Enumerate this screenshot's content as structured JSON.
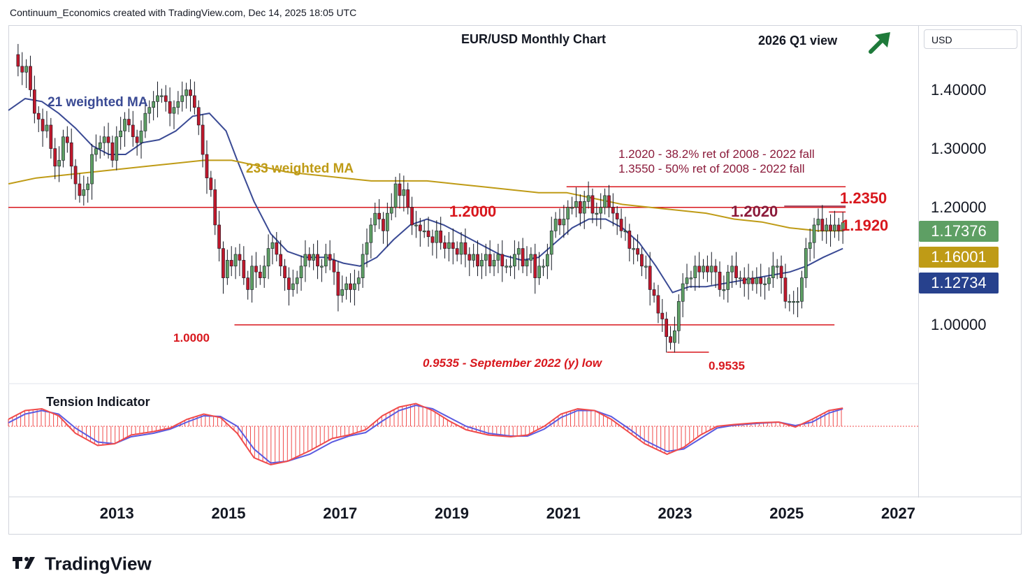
{
  "header": {
    "attribution": "Continuum_Economics created with TradingView.com, Dec 14, 2025 18:05 UTC"
  },
  "branding": {
    "logo_text": "TradingView",
    "logo_icon": "tradingview-logo-icon"
  },
  "chart_data": {
    "type": "candlestick",
    "title": "EUR/USD Monthly Chart",
    "view_label": "2026 Q1 view",
    "view_direction": "up",
    "view_arrow_icon": "arrow-up-right-icon",
    "currency": "USD",
    "ylim": [
      0.9,
      1.51
    ],
    "y_ticks": [
      "1.40000",
      "1.30000",
      "1.20000",
      "1.00000"
    ],
    "x_ticks": [
      "2013",
      "2015",
      "2017",
      "2019",
      "2021",
      "2023",
      "2025",
      "2027"
    ],
    "x_range": [
      2011.0,
      2027.3
    ],
    "last_prices": [
      {
        "value": "1.17376",
        "color": "#5e9f64"
      },
      {
        "value": "1.16001",
        "color": "#bf9b16"
      },
      {
        "value": "1.12734",
        "color": "#27418d"
      }
    ],
    "colors": {
      "up": "#5e9f64",
      "down": "#c0182c",
      "ma21": "#3a4a94",
      "ma233": "#bf9b16",
      "level": "#d8171d",
      "annotation": "#8b1a3a",
      "view": "#1e7a3a",
      "osc_fast": "#f04a4a",
      "osc_slow": "#5b5be0"
    },
    "moving_averages": [
      {
        "name": "21 weighted MA",
        "color": "#3a4a94",
        "points": [
          [
            2011.0,
            1.365
          ],
          [
            2011.3,
            1.385
          ],
          [
            2011.6,
            1.38
          ],
          [
            2011.9,
            1.36
          ],
          [
            2012.2,
            1.335
          ],
          [
            2012.5,
            1.305
          ],
          [
            2012.8,
            1.29
          ],
          [
            2013.1,
            1.29
          ],
          [
            2013.4,
            1.31
          ],
          [
            2013.7,
            1.315
          ],
          [
            2014.0,
            1.33
          ],
          [
            2014.3,
            1.355
          ],
          [
            2014.6,
            1.36
          ],
          [
            2014.9,
            1.33
          ],
          [
            2015.1,
            1.28
          ],
          [
            2015.4,
            1.21
          ],
          [
            2015.7,
            1.155
          ],
          [
            2016.0,
            1.125
          ],
          [
            2016.3,
            1.115
          ],
          [
            2016.7,
            1.115
          ],
          [
            2017.0,
            1.105
          ],
          [
            2017.3,
            1.1
          ],
          [
            2017.6,
            1.115
          ],
          [
            2017.9,
            1.145
          ],
          [
            2018.2,
            1.17
          ],
          [
            2018.5,
            1.18
          ],
          [
            2018.8,
            1.17
          ],
          [
            2019.1,
            1.155
          ],
          [
            2019.4,
            1.14
          ],
          [
            2019.8,
            1.12
          ],
          [
            2020.2,
            1.11
          ],
          [
            2020.5,
            1.115
          ],
          [
            2020.8,
            1.14
          ],
          [
            2021.1,
            1.165
          ],
          [
            2021.4,
            1.18
          ],
          [
            2021.7,
            1.18
          ],
          [
            2022.0,
            1.165
          ],
          [
            2022.3,
            1.14
          ],
          [
            2022.6,
            1.1
          ],
          [
            2022.9,
            1.055
          ],
          [
            2023.2,
            1.065
          ],
          [
            2023.5,
            1.065
          ],
          [
            2023.8,
            1.07
          ],
          [
            2024.1,
            1.075
          ],
          [
            2024.4,
            1.08
          ],
          [
            2024.7,
            1.085
          ],
          [
            2025.0,
            1.09
          ],
          [
            2025.3,
            1.1
          ],
          [
            2025.6,
            1.115
          ],
          [
            2025.95,
            1.13
          ]
        ]
      },
      {
        "name": "233 weighted MA",
        "color": "#bf9b16",
        "points": [
          [
            2011.0,
            1.24
          ],
          [
            2011.5,
            1.25
          ],
          [
            2012.0,
            1.255
          ],
          [
            2012.5,
            1.26
          ],
          [
            2013.0,
            1.265
          ],
          [
            2013.5,
            1.27
          ],
          [
            2014.0,
            1.275
          ],
          [
            2014.5,
            1.28
          ],
          [
            2015.0,
            1.28
          ],
          [
            2015.5,
            1.27
          ],
          [
            2016.0,
            1.26
          ],
          [
            2016.5,
            1.255
          ],
          [
            2017.0,
            1.25
          ],
          [
            2017.5,
            1.245
          ],
          [
            2018.0,
            1.245
          ],
          [
            2018.5,
            1.245
          ],
          [
            2019.0,
            1.24
          ],
          [
            2019.5,
            1.235
          ],
          [
            2020.0,
            1.23
          ],
          [
            2020.5,
            1.225
          ],
          [
            2021.0,
            1.225
          ],
          [
            2021.5,
            1.215
          ],
          [
            2022.0,
            1.205
          ],
          [
            2022.5,
            1.2
          ],
          [
            2023.0,
            1.195
          ],
          [
            2023.5,
            1.19
          ],
          [
            2024.0,
            1.18
          ],
          [
            2024.5,
            1.175
          ],
          [
            2025.0,
            1.165
          ],
          [
            2025.5,
            1.16
          ],
          [
            2025.95,
            1.16
          ]
        ]
      }
    ],
    "candles_close": [
      1.46,
      1.44,
      1.43,
      1.44,
      1.4,
      1.36,
      1.35,
      1.33,
      1.34,
      1.3,
      1.27,
      1.28,
      1.32,
      1.31,
      1.27,
      1.24,
      1.22,
      1.23,
      1.24,
      1.29,
      1.3,
      1.31,
      1.32,
      1.31,
      1.28,
      1.32,
      1.33,
      1.35,
      1.34,
      1.32,
      1.31,
      1.33,
      1.36,
      1.37,
      1.38,
      1.39,
      1.39,
      1.38,
      1.36,
      1.37,
      1.38,
      1.39,
      1.4,
      1.39,
      1.37,
      1.34,
      1.29,
      1.25,
      1.23,
      1.17,
      1.13,
      1.08,
      1.11,
      1.1,
      1.12,
      1.11,
      1.08,
      1.06,
      1.1,
      1.09,
      1.08,
      1.1,
      1.13,
      1.14,
      1.12,
      1.1,
      1.08,
      1.06,
      1.07,
      1.08,
      1.1,
      1.12,
      1.11,
      1.12,
      1.1,
      1.1,
      1.12,
      1.11,
      1.09,
      1.05,
      1.06,
      1.07,
      1.06,
      1.07,
      1.08,
      1.12,
      1.14,
      1.17,
      1.19,
      1.18,
      1.16,
      1.19,
      1.2,
      1.24,
      1.22,
      1.23,
      1.2,
      1.17,
      1.17,
      1.16,
      1.16,
      1.15,
      1.14,
      1.16,
      1.14,
      1.13,
      1.14,
      1.13,
      1.12,
      1.14,
      1.12,
      1.11,
      1.12,
      1.1,
      1.11,
      1.12,
      1.1,
      1.11,
      1.12,
      1.1,
      1.1,
      1.1,
      1.12,
      1.13,
      1.1,
      1.11,
      1.12,
      1.08,
      1.1,
      1.1,
      1.12,
      1.16,
      1.18,
      1.17,
      1.18,
      1.2,
      1.2,
      1.21,
      1.19,
      1.21,
      1.22,
      1.19,
      1.19,
      1.2,
      1.22,
      1.2,
      1.19,
      1.18,
      1.16,
      1.16,
      1.13,
      1.13,
      1.12,
      1.1,
      1.1,
      1.06,
      1.05,
      1.02,
      1.01,
      0.98,
      0.97,
      0.99,
      1.04,
      1.07,
      1.08,
      1.08,
      1.1,
      1.09,
      1.1,
      1.09,
      1.1,
      1.09,
      1.06,
      1.06,
      1.09,
      1.1,
      1.08,
      1.08,
      1.07,
      1.08,
      1.07,
      1.08,
      1.07,
      1.07,
      1.08,
      1.1,
      1.1,
      1.08,
      1.04,
      1.04,
      1.04,
      1.04,
      1.08,
      1.13,
      1.14,
      1.17,
      1.18,
      1.16,
      1.17,
      1.16,
      1.17,
      1.16,
      1.174
    ],
    "candle_range": [
      2011.1,
      2025.95
    ],
    "horizontal_levels": [
      {
        "value": 1.2,
        "label": "1.2000",
        "color": "#d8171d",
        "from": 2011.0,
        "to": 2026.0
      },
      {
        "value": 1.235,
        "label": "1.2350",
        "color": "#d8171d",
        "from": 2021.0,
        "to": 2026.0
      },
      {
        "value": 1.202,
        "label": "1.2020",
        "color": "#8b1a3a",
        "from": 2024.9,
        "to": 2026.0
      },
      {
        "value": 1.192,
        "label": "1.1920",
        "color": "#d8171d",
        "from": 2025.7,
        "to": 2026.0
      },
      {
        "value": 1.0,
        "label": "1.0000",
        "color": "#d8171d",
        "from": 2015.05,
        "to": 2025.8
      },
      {
        "value": 0.9535,
        "label": "0.9535",
        "color": "#d8171d",
        "from": 2022.8,
        "to": 2023.55
      }
    ],
    "annotations": [
      {
        "text": "1.2020 - 38.2% ret of 2008 - 2022 fall",
        "color": "#8b1a3a"
      },
      {
        "text": "1.3550 - 50% ret of 2008 - 2022 fall",
        "color": "#8b1a3a"
      },
      {
        "text": "0.9535 - September 2022 (y) low",
        "color": "#d8171d"
      },
      {
        "text": "21 weighted MA",
        "color": "#3a4a94"
      },
      {
        "text": "233 weighted MA",
        "color": "#bf9b16"
      }
    ],
    "indicator": {
      "name": "Tension Indicator",
      "fast": [
        [
          2011.0,
          0.2
        ],
        [
          2011.3,
          0.45
        ],
        [
          2011.6,
          0.5
        ],
        [
          2011.9,
          0.3
        ],
        [
          2012.2,
          -0.2
        ],
        [
          2012.6,
          -0.55
        ],
        [
          2012.9,
          -0.5
        ],
        [
          2013.2,
          -0.25
        ],
        [
          2013.6,
          -0.15
        ],
        [
          2013.9,
          -0.05
        ],
        [
          2014.2,
          0.2
        ],
        [
          2014.5,
          0.35
        ],
        [
          2014.8,
          0.25
        ],
        [
          2015.1,
          -0.2
        ],
        [
          2015.4,
          -0.9
        ],
        [
          2015.7,
          -1.1
        ],
        [
          2016.0,
          -1.0
        ],
        [
          2016.4,
          -0.7
        ],
        [
          2016.8,
          -0.35
        ],
        [
          2017.1,
          -0.25
        ],
        [
          2017.4,
          -0.1
        ],
        [
          2017.7,
          0.3
        ],
        [
          2018.0,
          0.55
        ],
        [
          2018.3,
          0.65
        ],
        [
          2018.6,
          0.45
        ],
        [
          2018.9,
          0.15
        ],
        [
          2019.2,
          -0.1
        ],
        [
          2019.6,
          -0.25
        ],
        [
          2020.0,
          -0.3
        ],
        [
          2020.3,
          -0.25
        ],
        [
          2020.6,
          0.0
        ],
        [
          2020.9,
          0.35
        ],
        [
          2021.2,
          0.5
        ],
        [
          2021.5,
          0.45
        ],
        [
          2021.8,
          0.2
        ],
        [
          2022.1,
          -0.15
        ],
        [
          2022.4,
          -0.5
        ],
        [
          2022.8,
          -0.8
        ],
        [
          2023.1,
          -0.6
        ],
        [
          2023.4,
          -0.25
        ],
        [
          2023.7,
          0.0
        ],
        [
          2024.0,
          0.05
        ],
        [
          2024.4,
          0.1
        ],
        [
          2024.8,
          0.12
        ],
        [
          2025.1,
          -0.02
        ],
        [
          2025.4,
          0.2
        ],
        [
          2025.7,
          0.45
        ],
        [
          2025.95,
          0.52
        ]
      ],
      "slow": [
        [
          2011.0,
          0.1
        ],
        [
          2011.3,
          0.35
        ],
        [
          2011.6,
          0.45
        ],
        [
          2011.9,
          0.35
        ],
        [
          2012.2,
          -0.05
        ],
        [
          2012.6,
          -0.45
        ],
        [
          2012.9,
          -0.5
        ],
        [
          2013.2,
          -0.3
        ],
        [
          2013.6,
          -0.2
        ],
        [
          2013.9,
          -0.08
        ],
        [
          2014.2,
          0.12
        ],
        [
          2014.5,
          0.3
        ],
        [
          2014.8,
          0.28
        ],
        [
          2015.1,
          0.0
        ],
        [
          2015.4,
          -0.65
        ],
        [
          2015.7,
          -1.05
        ],
        [
          2016.0,
          -1.0
        ],
        [
          2016.4,
          -0.8
        ],
        [
          2016.8,
          -0.45
        ],
        [
          2017.1,
          -0.28
        ],
        [
          2017.4,
          -0.18
        ],
        [
          2017.7,
          0.15
        ],
        [
          2018.0,
          0.45
        ],
        [
          2018.3,
          0.6
        ],
        [
          2018.6,
          0.5
        ],
        [
          2018.9,
          0.25
        ],
        [
          2019.2,
          0.0
        ],
        [
          2019.6,
          -0.2
        ],
        [
          2020.0,
          -0.28
        ],
        [
          2020.3,
          -0.28
        ],
        [
          2020.6,
          -0.08
        ],
        [
          2020.9,
          0.25
        ],
        [
          2021.2,
          0.45
        ],
        [
          2021.5,
          0.45
        ],
        [
          2021.8,
          0.28
        ],
        [
          2022.1,
          -0.05
        ],
        [
          2022.4,
          -0.4
        ],
        [
          2022.8,
          -0.72
        ],
        [
          2023.1,
          -0.65
        ],
        [
          2023.4,
          -0.35
        ],
        [
          2023.7,
          -0.05
        ],
        [
          2024.0,
          0.03
        ],
        [
          2024.4,
          0.08
        ],
        [
          2024.8,
          0.12
        ],
        [
          2025.1,
          0.02
        ],
        [
          2025.4,
          0.12
        ],
        [
          2025.7,
          0.38
        ],
        [
          2025.95,
          0.5
        ]
      ]
    }
  }
}
